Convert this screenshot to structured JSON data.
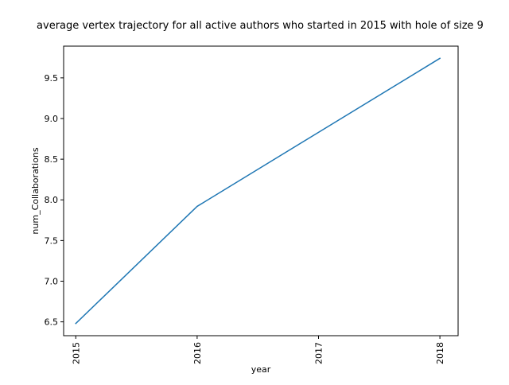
{
  "chart_data": {
    "type": "line",
    "title": "average vertex trajectory for all active authors who started in 2015 with hole of size 9",
    "xlabel": "year",
    "ylabel": "num_Collaborations",
    "x": [
      "2015",
      "2016",
      "2017",
      "2018"
    ],
    "series": [
      {
        "values": [
          6.48,
          7.92,
          8.83,
          9.74
        ],
        "color": "#1f77b4"
      }
    ],
    "xlim": [
      2014.9,
      2018.15
    ],
    "ylim": [
      6.33,
      9.89
    ],
    "yticks": [
      "6.5",
      "7.0",
      "7.5",
      "8.0",
      "8.5",
      "9.0",
      "9.5"
    ],
    "xtick_rotation": "vertical",
    "grid": false,
    "legend": "none"
  }
}
